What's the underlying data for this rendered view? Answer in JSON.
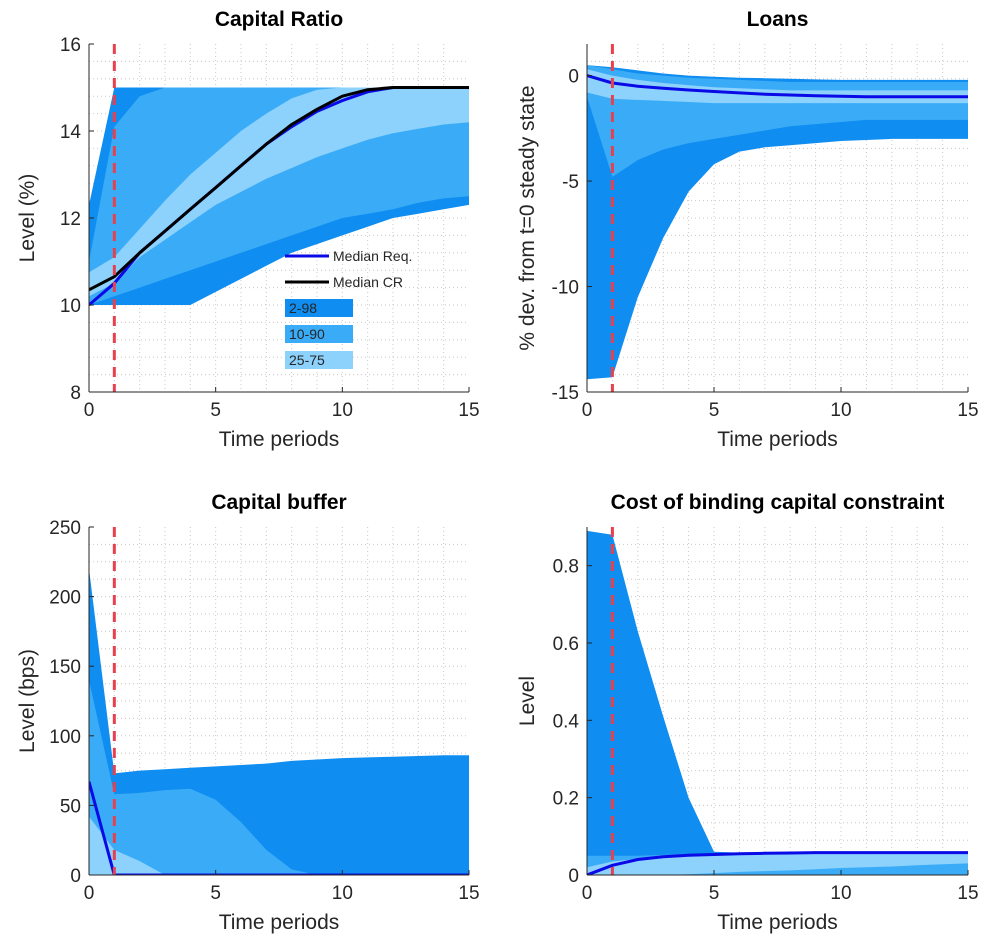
{
  "colors": {
    "band_2_98": "#0f8df0",
    "band_10_90": "#3aacf7",
    "band_25_75": "#8dd2fc",
    "median_req": "#0a0ae6",
    "median_cr": "#000000",
    "vline": "#e8404d",
    "grid": "#c8c8c8",
    "axis": "#262626"
  },
  "chart_data": [
    {
      "type": "area",
      "title": "Capital Ratio",
      "xlabel": "Time periods",
      "ylabel": "Level (%)",
      "xlim": [
        0,
        15
      ],
      "ylim": [
        8,
        16
      ],
      "xticks": [
        0,
        5,
        10,
        15
      ],
      "yticks": [
        8,
        10,
        12,
        14,
        16
      ],
      "grid": true,
      "vline_x": 1,
      "legend": {
        "placement": "lower-right",
        "entries": [
          "Median Req.",
          "Median CR",
          "2-98",
          "10-90",
          "25-75"
        ]
      },
      "x": [
        0,
        1,
        2,
        3,
        4,
        5,
        6,
        7,
        8,
        9,
        10,
        11,
        12,
        13,
        14,
        15
      ],
      "bands": [
        {
          "name": "2-98",
          "lower": [
            10,
            10,
            10,
            10,
            10,
            10.3,
            10.6,
            10.9,
            11.2,
            11.4,
            11.6,
            11.8,
            12.0,
            12.1,
            12.2,
            12.3
          ],
          "upper": [
            12.3,
            15,
            15,
            15,
            15,
            15,
            15,
            15,
            15,
            15,
            15,
            15,
            15,
            15,
            15,
            15
          ]
        },
        {
          "name": "10-90",
          "lower": [
            10,
            10.2,
            10.4,
            10.6,
            10.8,
            11.0,
            11.2,
            11.4,
            11.6,
            11.8,
            12.0,
            12.1,
            12.2,
            12.35,
            12.45,
            12.5
          ],
          "upper": [
            11.0,
            14.1,
            14.8,
            15,
            15,
            15,
            15,
            15,
            15,
            15,
            15,
            15,
            15,
            15,
            15,
            15
          ]
        },
        {
          "name": "25-75",
          "lower": [
            10.2,
            10.5,
            11.1,
            11.5,
            11.9,
            12.3,
            12.6,
            12.9,
            13.15,
            13.4,
            13.6,
            13.8,
            13.95,
            14.05,
            14.15,
            14.2
          ],
          "upper": [
            10.75,
            11.1,
            11.75,
            12.4,
            13.0,
            13.5,
            14.0,
            14.4,
            14.75,
            14.95,
            15,
            15,
            15,
            15,
            15,
            15
          ]
        }
      ],
      "series": [
        {
          "name": "Median Req.",
          "values": [
            10.0,
            10.5,
            11.2,
            11.7,
            12.2,
            12.7,
            13.2,
            13.7,
            14.1,
            14.45,
            14.7,
            14.9,
            15,
            15,
            15,
            15
          ]
        },
        {
          "name": "Median CR",
          "values": [
            10.35,
            10.65,
            11.2,
            11.7,
            12.2,
            12.7,
            13.2,
            13.7,
            14.15,
            14.5,
            14.8,
            14.95,
            15,
            15,
            15,
            15
          ]
        }
      ]
    },
    {
      "type": "area",
      "title": "Loans",
      "xlabel": "Time periods",
      "ylabel": "% dev. from t=0 steady state",
      "xlim": [
        0,
        15
      ],
      "ylim": [
        -15,
        1.5
      ],
      "xticks": [
        0,
        5,
        10,
        15
      ],
      "yticks": [
        -15,
        -10,
        -5,
        0
      ],
      "grid": true,
      "vline_x": 1,
      "x": [
        0,
        1,
        2,
        3,
        4,
        5,
        6,
        7,
        8,
        9,
        10,
        11,
        12,
        13,
        14,
        15
      ],
      "bands": [
        {
          "name": "2-98",
          "lower": [
            -14.4,
            -14.3,
            -10.5,
            -7.7,
            -5.5,
            -4.2,
            -3.6,
            -3.4,
            -3.3,
            -3.2,
            -3.1,
            -3.05,
            -3.0,
            -3.0,
            -3.0,
            -3.0
          ],
          "upper": [
            0.5,
            0.4,
            0.25,
            0.1,
            0.0,
            -0.05,
            -0.1,
            -0.12,
            -0.15,
            -0.18,
            -0.2,
            -0.2,
            -0.2,
            -0.2,
            -0.2,
            -0.2
          ]
        },
        {
          "name": "10-90",
          "lower": [
            -1.0,
            -4.8,
            -4.0,
            -3.5,
            -3.2,
            -3.0,
            -2.8,
            -2.6,
            -2.4,
            -2.3,
            -2.2,
            -2.1,
            -2.1,
            -2.1,
            -2.1,
            -2.1
          ],
          "upper": [
            0.5,
            0.3,
            0.1,
            0.0,
            -0.1,
            -0.15,
            -0.2,
            -0.25,
            -0.3,
            -0.3,
            -0.3,
            -0.3,
            -0.3,
            -0.3,
            -0.3,
            -0.3
          ]
        },
        {
          "name": "25-75",
          "lower": [
            -0.8,
            -1.1,
            -1.15,
            -1.2,
            -1.25,
            -1.3,
            -1.3,
            -1.3,
            -1.3,
            -1.3,
            -1.3,
            -1.3,
            -1.3,
            -1.3,
            -1.3,
            -1.3
          ],
          "upper": [
            0.3,
            0.0,
            -0.2,
            -0.35,
            -0.45,
            -0.55,
            -0.6,
            -0.65,
            -0.7,
            -0.7,
            -0.7,
            -0.7,
            -0.7,
            -0.7,
            -0.7,
            -0.7
          ]
        }
      ],
      "series": [
        {
          "name": "Median Req.",
          "values": [
            0.0,
            -0.35,
            -0.5,
            -0.6,
            -0.68,
            -0.75,
            -0.82,
            -0.88,
            -0.92,
            -0.95,
            -0.98,
            -1.0,
            -1.0,
            -1.0,
            -1.0,
            -1.0
          ]
        }
      ]
    },
    {
      "type": "area",
      "title": "Capital buffer",
      "xlabel": "Time periods",
      "ylabel": "Level (bps)",
      "xlim": [
        0,
        15
      ],
      "ylim": [
        0,
        250
      ],
      "xticks": [
        0,
        5,
        10,
        15
      ],
      "yticks": [
        0,
        50,
        100,
        150,
        200,
        250
      ],
      "grid": true,
      "vline_x": 1,
      "x": [
        0,
        1,
        2,
        3,
        4,
        5,
        6,
        7,
        8,
        9,
        10,
        11,
        12,
        13,
        14,
        15
      ],
      "bands": [
        {
          "name": "2-98",
          "lower": [
            0,
            0,
            0,
            0,
            0,
            0,
            0,
            0,
            0,
            0,
            0,
            0,
            0,
            0,
            0,
            0
          ],
          "upper": [
            220,
            73,
            75,
            76,
            77,
            78,
            79,
            80,
            82,
            83,
            84,
            84.5,
            85,
            85.5,
            86,
            86
          ]
        },
        {
          "name": "10-90",
          "lower": [
            0,
            0,
            0,
            0,
            0,
            0,
            0,
            0,
            0,
            0,
            0,
            0,
            0,
            0,
            0,
            0
          ],
          "upper": [
            140,
            58,
            59,
            61,
            62,
            54,
            38,
            18,
            4,
            0,
            0,
            0,
            0,
            0,
            0,
            0
          ]
        },
        {
          "name": "25-75",
          "lower": [
            0,
            0,
            0,
            0,
            0,
            0,
            0,
            0,
            0,
            0,
            0,
            0,
            0,
            0,
            0,
            0
          ],
          "upper": [
            42,
            18,
            10,
            0,
            0,
            0,
            0,
            0,
            0,
            0,
            0,
            0,
            0,
            0,
            0,
            0
          ]
        }
      ],
      "series": [
        {
          "name": "Median Req.",
          "values": [
            67,
            0,
            0,
            0,
            0,
            0,
            0,
            0,
            0,
            0,
            0,
            0,
            0,
            0,
            0,
            0
          ]
        }
      ]
    },
    {
      "type": "area",
      "title": "Cost of binding capital constraint",
      "xlabel": "Time periods",
      "ylabel": "Level",
      "xlim": [
        0,
        15
      ],
      "ylim": [
        0,
        0.9
      ],
      "xticks": [
        0,
        5,
        10,
        15
      ],
      "yticks": [
        0,
        0.2,
        0.4,
        0.6,
        0.8
      ],
      "grid": true,
      "vline_x": 1,
      "x": [
        0,
        1,
        2,
        3,
        4,
        5,
        6,
        7,
        8,
        9,
        10,
        11,
        12,
        13,
        14,
        15
      ],
      "bands": [
        {
          "name": "2-98",
          "lower": [
            0,
            0,
            0,
            0,
            0,
            0,
            0,
            0,
            0,
            0,
            0,
            0,
            0,
            0,
            0,
            0
          ],
          "upper": [
            0.89,
            0.88,
            0.63,
            0.41,
            0.2,
            0.06,
            0.058,
            0.058,
            0.058,
            0.058,
            0.058,
            0.058,
            0.058,
            0.058,
            0.058,
            0.058
          ]
        },
        {
          "name": "10-90",
          "lower": [
            0,
            0,
            0,
            0,
            0,
            0,
            0,
            0,
            0,
            0,
            0,
            0,
            0,
            0,
            0,
            0
          ],
          "upper": [
            0.05,
            0.05,
            0.05,
            0.052,
            0.054,
            0.055,
            0.055,
            0.055,
            0.055,
            0.055,
            0.055,
            0.055,
            0.055,
            0.055,
            0.055,
            0.055
          ]
        },
        {
          "name": "25-75",
          "lower": [
            0,
            0,
            0,
            0,
            0.002,
            0.005,
            0.008,
            0.01,
            0.012,
            0.015,
            0.018,
            0.02,
            0.022,
            0.025,
            0.028,
            0.03
          ],
          "upper": [
            0.02,
            0.035,
            0.042,
            0.046,
            0.048,
            0.05,
            0.052,
            0.053,
            0.054,
            0.055,
            0.055,
            0.055,
            0.055,
            0.055,
            0.055,
            0.055
          ]
        }
      ],
      "series": [
        {
          "name": "Median Req.",
          "values": [
            0,
            0.025,
            0.04,
            0.047,
            0.051,
            0.053,
            0.055,
            0.056,
            0.057,
            0.058,
            0.058,
            0.058,
            0.058,
            0.058,
            0.058,
            0.058
          ]
        }
      ]
    }
  ]
}
